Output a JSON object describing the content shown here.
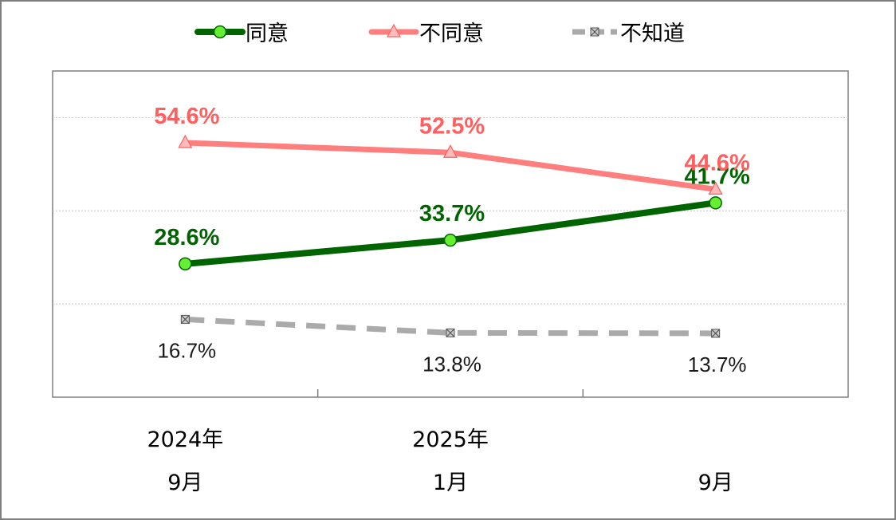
{
  "colors": {
    "agree": "#006400",
    "agree_marker": "#66ee33",
    "disagree": "#ff7f7f",
    "disagree_text": "#ff5f5f",
    "disagree_marker": "#ffbbbb",
    "unknown": "#aaaaaa",
    "unknown_marker": "#555555",
    "grid": "#c8c8c8",
    "frame": "#7f7f7f"
  },
  "chart_data": {
    "type": "line",
    "categories": [
      {
        "year": "2024年",
        "month": "9月"
      },
      {
        "year": "2025年",
        "month": "1月"
      },
      {
        "year": "",
        "month": "9月"
      }
    ],
    "ylim": [
      0,
      70
    ],
    "grid": true,
    "legend_position": "top",
    "series": [
      {
        "name": "同意",
        "values": [
          28.6,
          33.7,
          41.7
        ],
        "labels": [
          "28.6%",
          "33.7%",
          "41.7%"
        ],
        "style": "solid",
        "marker": "circle"
      },
      {
        "name": "不同意",
        "values": [
          54.6,
          52.5,
          44.6
        ],
        "labels": [
          "54.6%",
          "52.5%",
          "44.6%"
        ],
        "style": "solid",
        "marker": "triangle"
      },
      {
        "name": "不知道",
        "values": [
          16.7,
          13.8,
          13.7
        ],
        "labels": [
          "16.7%",
          "13.8%",
          "13.7%"
        ],
        "style": "dashed",
        "marker": "square-x"
      }
    ]
  }
}
